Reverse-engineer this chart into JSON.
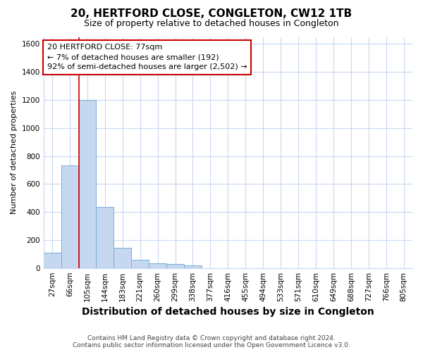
{
  "title": "20, HERTFORD CLOSE, CONGLETON, CW12 1TB",
  "subtitle": "Size of property relative to detached houses in Congleton",
  "xlabel": "Distribution of detached houses by size in Congleton",
  "ylabel": "Number of detached properties",
  "footer_line1": "Contains HM Land Registry data © Crown copyright and database right 2024.",
  "footer_line2": "Contains public sector information licensed under the Open Government Licence v3.0.",
  "categories": [
    "27sqm",
    "66sqm",
    "105sqm",
    "144sqm",
    "183sqm",
    "221sqm",
    "260sqm",
    "299sqm",
    "338sqm",
    "377sqm",
    "416sqm",
    "455sqm",
    "494sqm",
    "533sqm",
    "571sqm",
    "610sqm",
    "649sqm",
    "688sqm",
    "727sqm",
    "766sqm",
    "805sqm"
  ],
  "values": [
    110,
    730,
    1200,
    435,
    145,
    60,
    35,
    30,
    20,
    0,
    0,
    0,
    0,
    0,
    0,
    0,
    0,
    0,
    0,
    0,
    0
  ],
  "bar_color": "#c5d8f0",
  "bar_edge_color": "#7badd4",
  "bar_width": 1.0,
  "ylim": [
    0,
    1650
  ],
  "yticks": [
    0,
    200,
    400,
    600,
    800,
    1000,
    1200,
    1400,
    1600
  ],
  "red_line_x": 1.5,
  "annotation_line1": "20 HERTFORD CLOSE: 77sqm",
  "annotation_line2": "← 7% of detached houses are smaller (192)",
  "annotation_line3": "92% of semi-detached houses are larger (2,502) →",
  "annotation_box_color": "#ffffff",
  "annotation_border_color": "#cc0000",
  "bg_color": "#ffffff",
  "grid_color": "#c8d8ee",
  "title_fontsize": 11,
  "subtitle_fontsize": 9,
  "xlabel_fontsize": 10,
  "ylabel_fontsize": 8,
  "tick_fontsize": 7.5
}
